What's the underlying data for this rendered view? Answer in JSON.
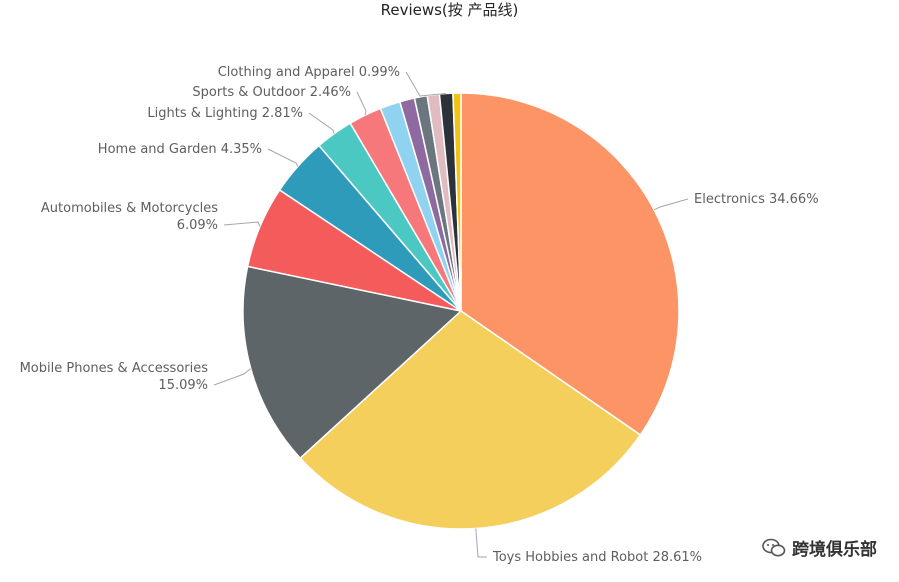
{
  "chart_data": {
    "type": "pie",
    "title": "Reviews(按 产品线)",
    "slices": [
      {
        "label": "Electronics",
        "value": 34.66,
        "pct": "34.66%",
        "color": "#fd9466"
      },
      {
        "label": "Toys Hobbies and Robot",
        "value": 28.61,
        "pct": "28.61%",
        "color": "#f5cf5b"
      },
      {
        "label": "Mobile Phones & Accessories",
        "value": 15.09,
        "pct": "15.09%",
        "color": "#5e6569"
      },
      {
        "label": "Automobiles & Motorcycles",
        "value": 6.09,
        "pct": "6.09%",
        "color": "#f45c5c"
      },
      {
        "label": "Home and Garden",
        "value": 4.35,
        "pct": "4.35%",
        "color": "#2f9bbb"
      },
      {
        "label": "Lights & Lighting",
        "value": 2.81,
        "pct": "2.81%",
        "color": "#4bc8c2"
      },
      {
        "label": "Sports & Outdoor",
        "value": 2.46,
        "pct": "2.46%",
        "color": "#f7787b"
      },
      {
        "label": "",
        "value": 1.5,
        "pct": "",
        "color": "#8fd3f0"
      },
      {
        "label": "",
        "value": 1.1,
        "pct": "",
        "color": "#8f6aa1"
      },
      {
        "label": "",
        "value": 0.95,
        "pct": "",
        "color": "#6b767e"
      },
      {
        "label": "",
        "value": 0.9,
        "pct": "",
        "color": "#e0bcc1"
      },
      {
        "label": "Clothing and Apparel",
        "value": 0.99,
        "pct": "0.99%",
        "color": "#2b3239"
      },
      {
        "label": "",
        "value": 0.59,
        "pct": "",
        "color": "#f2c315"
      }
    ],
    "legend": "none"
  },
  "watermark": "跨境俱乐部"
}
